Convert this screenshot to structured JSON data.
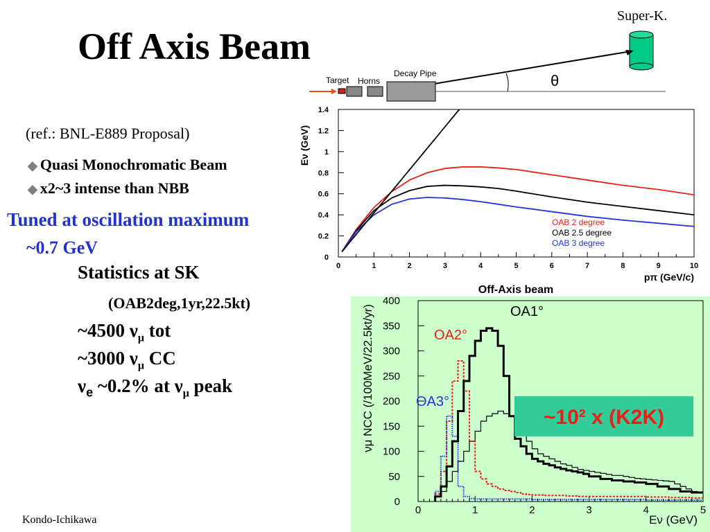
{
  "slide": {
    "title": "Off Axis Beam",
    "reference": "(ref.: BNL-E889 Proposal)",
    "bullets": [
      "Quasi Monochromatic Beam",
      "x2~3 intense than NBB"
    ],
    "tuned": "Tuned at oscillation maximum",
    "tuned_energy": "~0.7 GeV",
    "statistics_heading": "Statistics at SK",
    "statistics_condition": "(OAB2deg,1yr,22.5kt)",
    "stat_tot_value": "~4500",
    "stat_tot_unit": "tot",
    "stat_cc_value": "~3000",
    "stat_cc_unit": "CC",
    "ve_text": "~0.2% at",
    "ve_tail": "peak",
    "footer": "Kondo-Ichikawa",
    "super_k_label": "Super-K.",
    "target_label": "Target",
    "horns_label": "Horns",
    "decay_pipe_label": "Decay Pipe",
    "theta_symbol": "θ",
    "nu": "ν",
    "mu": "μ",
    "e_sub": "e",
    "bullet_glyph": "◆"
  },
  "colors": {
    "title": "#000000",
    "tuned_text": "#2233cc",
    "red": "#e8201a",
    "black": "#000000",
    "blue": "#2233dd",
    "plot_bg": "#ccffcc",
    "k2k_box": "#33cc99",
    "detector": "#00cc88"
  },
  "chart_data": [
    {
      "type": "line",
      "title": "Off-Axis beam",
      "xlabel": "pπ (GeV/c)",
      "ylabel": "Eν (GeV)",
      "xlim": [
        0,
        10
      ],
      "ylim": [
        0,
        1.4
      ],
      "x_ticks": [
        0,
        1,
        2,
        3,
        4,
        5,
        6,
        7,
        8,
        9,
        10
      ],
      "y_ticks": [
        0,
        0.2,
        0.4,
        0.6,
        0.8,
        1,
        1.2,
        1.4
      ],
      "x_tick_labels": [
        "0",
        "1",
        "2",
        "3",
        "4",
        "5",
        "6",
        "7",
        "8",
        "9",
        "10"
      ],
      "y_tick_labels": [
        "0",
        "0.2",
        "0.4",
        "0.6",
        "0.8",
        "1",
        "1.2",
        "1.4"
      ],
      "grid": false,
      "legend_position": "right-inside",
      "series": [
        {
          "name": "OAB 2 degree",
          "color": "#e8201a",
          "x": [
            0.1,
            0.5,
            1,
            1.5,
            2,
            2.5,
            3,
            3.5,
            4,
            4.5,
            5,
            6,
            7,
            8,
            9,
            10
          ],
          "y": [
            0.05,
            0.26,
            0.47,
            0.62,
            0.73,
            0.8,
            0.84,
            0.855,
            0.855,
            0.845,
            0.83,
            0.78,
            0.73,
            0.68,
            0.64,
            0.59
          ]
        },
        {
          "name": "OAB 2.5 degree",
          "color": "#000000",
          "x": [
            0.1,
            0.5,
            1,
            1.5,
            2,
            2.5,
            3,
            3.5,
            4,
            4.5,
            5,
            6,
            7,
            8,
            9,
            10
          ],
          "y": [
            0.05,
            0.25,
            0.44,
            0.56,
            0.63,
            0.67,
            0.68,
            0.675,
            0.665,
            0.65,
            0.625,
            0.57,
            0.52,
            0.48,
            0.44,
            0.4
          ]
        },
        {
          "name": "OAB 3 degree",
          "color": "#2233dd",
          "x": [
            0.1,
            0.5,
            1,
            1.5,
            2,
            2.5,
            3,
            3.5,
            4,
            4.5,
            5,
            6,
            7,
            8,
            9,
            10
          ],
          "y": [
            0.05,
            0.24,
            0.4,
            0.5,
            0.55,
            0.565,
            0.56,
            0.545,
            0.525,
            0.5,
            0.475,
            0.43,
            0.385,
            0.35,
            0.32,
            0.29
          ]
        },
        {
          "name": "",
          "color": "#000000",
          "x": [
            0.1,
            3.4
          ],
          "y": [
            0.05,
            1.4
          ]
        }
      ]
    },
    {
      "type": "line",
      "title": "",
      "xlabel": "Eν (GeV)",
      "ylabel": "νμ NCC (/100MeV/22.5kt/yr)",
      "xlim": [
        0,
        5
      ],
      "ylim": [
        0,
        400
      ],
      "x_ticks": [
        0,
        1,
        2,
        3,
        4,
        5
      ],
      "y_ticks": [
        0,
        50,
        100,
        150,
        200,
        250,
        300,
        350,
        400
      ],
      "x_tick_labels": [
        "0",
        "1",
        "2",
        "3",
        "4",
        "5"
      ],
      "y_tick_labels": [
        "0",
        "50",
        "100",
        "150",
        "200",
        "250",
        "300",
        "350",
        "400"
      ],
      "annotation": "~10² x (K2K)",
      "series": [
        {
          "name": "OA1°",
          "color": "#000000",
          "style": "histogram-thin",
          "edges": [
            0.3,
            0.4,
            0.5,
            0.6,
            0.7,
            0.8,
            0.9,
            1.0,
            1.1,
            1.2,
            1.3,
            1.4,
            1.5,
            1.6,
            1.7,
            1.8,
            1.9,
            2.0,
            2.1,
            2.2,
            2.3,
            2.4,
            2.5,
            2.6,
            2.7,
            2.8,
            2.9,
            3.0,
            3.1,
            3.2,
            3.3,
            3.4,
            3.5,
            3.6,
            3.7,
            3.8,
            3.9,
            4.0,
            4.1,
            4.2,
            4.3,
            4.4,
            4.5,
            4.6,
            4.7,
            4.8,
            4.9,
            5.0
          ],
          "values": [
            10,
            20,
            40,
            60,
            80,
            100,
            120,
            140,
            160,
            170,
            175,
            180,
            175,
            170,
            160,
            150,
            120,
            105,
            95,
            90,
            85,
            80,
            75,
            72,
            68,
            64,
            62,
            60,
            58,
            56,
            54,
            52,
            52,
            50,
            48,
            46,
            45,
            44,
            43,
            42,
            41,
            40,
            35,
            30,
            25,
            20,
            18
          ]
        },
        {
          "name": "OA2°",
          "color": "#e8201a",
          "style": "histogram-dashed",
          "edges": [
            0.3,
            0.4,
            0.5,
            0.6,
            0.7,
            0.8,
            0.9,
            1.0,
            1.1,
            1.2,
            1.3,
            1.4,
            1.5,
            1.6,
            1.7,
            1.8,
            1.9,
            2.0,
            2.2,
            2.4,
            2.6,
            2.8,
            3.0,
            3.2,
            3.4,
            3.6,
            3.8,
            4.0,
            4.2,
            4.4,
            4.6,
            4.8,
            5.0
          ],
          "values": [
            15,
            60,
            160,
            240,
            280,
            220,
            120,
            60,
            45,
            35,
            30,
            25,
            22,
            20,
            18,
            15,
            14,
            13,
            12,
            12,
            11,
            10,
            10,
            10,
            10,
            10,
            10,
            9,
            9,
            8,
            8,
            7
          ]
        },
        {
          "name": "OA3°",
          "color": "#2233dd",
          "style": "histogram-dotted",
          "edges": [
            0.3,
            0.4,
            0.5,
            0.6,
            0.7,
            0.8,
            0.9,
            1.0,
            1.2,
            1.4,
            1.6,
            1.8,
            2.0,
            2.5,
            3.0,
            3.5,
            4.0,
            4.5,
            5.0
          ],
          "values": [
            20,
            90,
            170,
            130,
            30,
            10,
            6,
            5,
            5,
            5,
            5,
            5,
            4,
            4,
            4,
            4,
            3,
            3
          ]
        },
        {
          "name": "",
          "color": "#000000",
          "style": "histogram-thick",
          "edges": [
            0.3,
            0.4,
            0.5,
            0.6,
            0.7,
            0.8,
            0.9,
            1.0,
            1.1,
            1.2,
            1.3,
            1.4,
            1.5,
            1.6,
            1.7,
            1.8,
            1.9,
            2.0,
            2.1,
            2.2,
            2.3,
            2.4,
            2.5,
            2.6,
            2.7,
            2.8,
            2.9,
            3.0,
            3.2,
            3.4,
            3.6,
            3.8,
            4.0,
            4.2,
            4.4,
            4.6,
            4.8,
            5.0
          ],
          "values": [
            10,
            30,
            70,
            120,
            180,
            240,
            290,
            320,
            340,
            345,
            340,
            310,
            250,
            170,
            125,
            110,
            95,
            85,
            80,
            75,
            72,
            68,
            65,
            62,
            60,
            58,
            55,
            50,
            45,
            42,
            40,
            38,
            35,
            30,
            25,
            20,
            18
          ]
        }
      ]
    }
  ]
}
